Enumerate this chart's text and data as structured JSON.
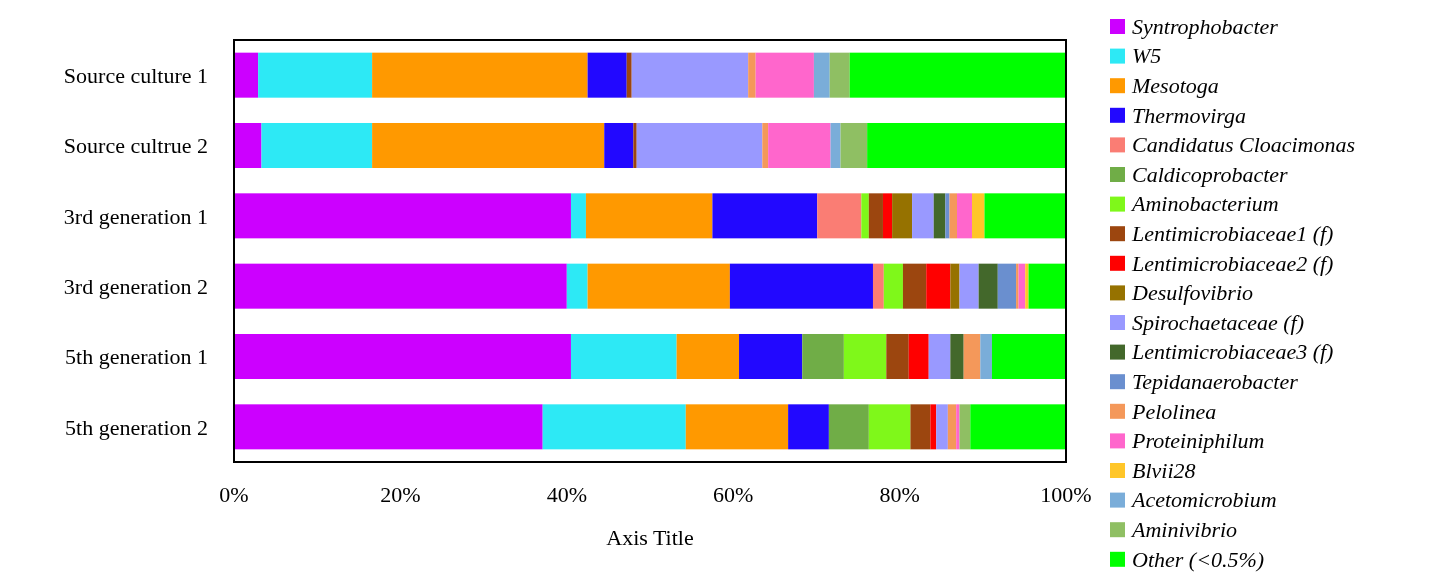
{
  "chart_data": {
    "type": "bar",
    "orientation": "horizontal",
    "stacked": true,
    "xlabel": "Axis Title",
    "legend": "right",
    "grid": false,
    "categories": [
      "Source culture 1",
      "Source cultrue 2",
      "3rd generation 1",
      "3rd generation 2",
      "5th generation 1",
      "5th generation 2"
    ],
    "xlim": [
      0,
      100
    ],
    "xticks": [
      {
        "value": 0,
        "label": "0%"
      },
      {
        "value": 20,
        "label": "20%"
      },
      {
        "value": 40,
        "label": "40%"
      },
      {
        "value": 60,
        "label": "60%"
      },
      {
        "value": 80,
        "label": "80%"
      },
      {
        "value": 100,
        "label": "100%"
      }
    ],
    "series": [
      {
        "name": "Syntrophobacter",
        "color": "#cc00ff",
        "values": [
          2.9,
          3.3,
          40.5,
          40.0,
          40.5,
          37.1
        ]
      },
      {
        "name": "W5",
        "color": "#2de9f5",
        "values": [
          13.7,
          13.3,
          1.8,
          2.5,
          12.7,
          17.2
        ]
      },
      {
        "name": "Mesotoga",
        "color": "#ff9900",
        "values": [
          25.9,
          27.9,
          15.2,
          17.1,
          7.5,
          12.3
        ]
      },
      {
        "name": "Thermovirga",
        "color": "#2208ff",
        "values": [
          4.7,
          3.5,
          12.6,
          17.2,
          7.6,
          4.9
        ]
      },
      {
        "name": "Candidatus Cloacimonas",
        "color": "#fa7d74",
        "values": [
          null,
          null,
          5.3,
          1.3,
          null,
          null
        ]
      },
      {
        "name": "Caldicoprobacter",
        "color": "#70ad47",
        "values": [
          null,
          null,
          null,
          null,
          5.0,
          4.8
        ]
      },
      {
        "name": "Aminobacterium",
        "color": "#7ff81a",
        "values": [
          null,
          null,
          0.9,
          2.3,
          5.1,
          5.0
        ]
      },
      {
        "name": "Lentimicrobiaceae1 (f)",
        "color": "#9c460f",
        "values": [
          0.6,
          0.4,
          1.7,
          2.8,
          2.7,
          2.4
        ]
      },
      {
        "name": "Lentimicrobiaceae2 (f)",
        "color": "#ff0000",
        "values": [
          null,
          null,
          1.1,
          2.9,
          2.4,
          0.7
        ]
      },
      {
        "name": "Desulfovibrio",
        "color": "#967200",
        "values": [
          null,
          null,
          2.4,
          1.1,
          null,
          null
        ]
      },
      {
        "name": "Spirochaetaceae (f)",
        "color": "#9999ff",
        "values": [
          14.0,
          15.1,
          2.6,
          2.3,
          2.6,
          1.4
        ]
      },
      {
        "name": "Lentimicrobiaceae3 (f)",
        "color": "#43682b",
        "values": [
          null,
          null,
          1.4,
          2.3,
          1.6,
          null
        ]
      },
      {
        "name": "Tepidanaerobacter",
        "color": "#6a8fcf",
        "values": [
          null,
          null,
          0.5,
          2.2,
          null,
          null
        ]
      },
      {
        "name": "Pelolinea",
        "color": "#f4985a",
        "values": [
          0.9,
          0.7,
          0.9,
          0.3,
          2.0,
          1.0
        ]
      },
      {
        "name": "Proteiniphilum",
        "color": "#ff66cc",
        "values": [
          7.0,
          7.5,
          1.8,
          0.8,
          null,
          0.4
        ]
      },
      {
        "name": "Blvii28",
        "color": "#ffc629",
        "values": [
          null,
          null,
          1.5,
          0.4,
          null,
          null
        ]
      },
      {
        "name": "Acetomicrobium",
        "color": "#7aadd9",
        "values": [
          1.9,
          1.2,
          null,
          null,
          1.4,
          null
        ]
      },
      {
        "name": "Aminivibrio",
        "color": "#8fbf63",
        "values": [
          2.4,
          3.2,
          null,
          null,
          null,
          1.3
        ]
      },
      {
        "name": "Other (<0.5%)",
        "color": "#00ff00",
        "values": [
          26.0,
          23.9,
          9.8,
          4.5,
          8.9,
          11.5
        ]
      }
    ]
  }
}
